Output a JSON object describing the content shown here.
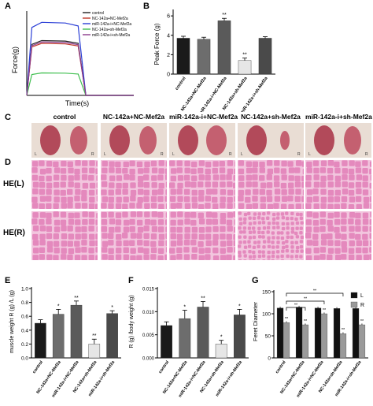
{
  "panel_labels": {
    "A": "A",
    "B": "B",
    "C": "C",
    "D": "D",
    "E": "E",
    "F": "F",
    "G": "G"
  },
  "groups": [
    "control",
    "NC-142a+NC-Mef2a",
    "miR-142a-i+NC-Mef2a",
    "NC-142a+sh-Mef2a",
    "miR-142a-i+sh-Mef2a"
  ],
  "colors": {
    "control": "#222222",
    "nc_nc": "#c0392b",
    "mir_nc": "#2b3fd6",
    "nc_sh": "#3fbf4f",
    "mir_sh": "#8b3a8b",
    "bar_control": "#1a1a1a",
    "bar_gray": "#6d6d6d",
    "bar_light": "#c8c8c8",
    "bar_white": "#e6e6e6",
    "bar_L": "#111111",
    "bar_R": "#9a9a9a",
    "he_pink": "#f2c6de",
    "he_fiber": "#e489bd"
  },
  "rows": {
    "C": "C",
    "he_L": "HE(L)",
    "he_R": "HE(R)"
  },
  "photo_marks": {
    "left": "L",
    "right": "R"
  },
  "chart_data": [
    {
      "panel": "A",
      "type": "line",
      "xlabel": "Time(s)",
      "ylabel": "Force(g)",
      "x": [
        0,
        0.5,
        1,
        1.5,
        2,
        2.5
      ],
      "series": [
        {
          "name": "control",
          "values": [
            0,
            3.9,
            3.9,
            0,
            0,
            0
          ]
        },
        {
          "name": "NC-142a+NC-Mef2a",
          "values": [
            0,
            3.7,
            3.7,
            0,
            0,
            0
          ]
        },
        {
          "name": "miR-142a-i+NC-Mef2a",
          "values": [
            0,
            5.2,
            5.2,
            0,
            0,
            0
          ]
        },
        {
          "name": "NC-142a+sh-Mef2a",
          "values": [
            0,
            1.6,
            1.6,
            0,
            0,
            0
          ]
        },
        {
          "name": "miR-142a-i+sh-Mef2a",
          "values": [
            0,
            3.8,
            3.8,
            0,
            0,
            0
          ]
        }
      ],
      "legend": "top-right"
    },
    {
      "panel": "B",
      "type": "bar",
      "ylabel": "Peak Force (g)",
      "yticks": [
        "0",
        "2",
        "4",
        "6"
      ],
      "ylim": [
        0,
        6.5
      ],
      "categories": [
        "control",
        "NC-142a+NC-Mef2a",
        "miR-142a-i+NC-Mef2a",
        "NC-142a+sh-Mef2a",
        "miR-142a-i+sh-Mef2a"
      ],
      "values": [
        3.7,
        3.6,
        5.5,
        1.4,
        3.7
      ],
      "errors": [
        0.2,
        0.2,
        0.25,
        0.25,
        0.15
      ],
      "significance": [
        "",
        "",
        "**",
        "**",
        ""
      ]
    },
    {
      "panel": "E",
      "type": "bar",
      "ylabel": "muscle weight R (g) /L (g)",
      "yticks": [
        "0.0",
        "0.2",
        "0.4",
        "0.6",
        "0.8",
        "1.0"
      ],
      "ylim": [
        0,
        1.0
      ],
      "categories": [
        "control",
        "NC-142a+NC-Mef2a",
        "miR-142a-i+NC-Mef2a",
        "NC-142a+sh-Mef2a",
        "miR-142a-i+sh-Mef2a"
      ],
      "values": [
        0.5,
        0.63,
        0.76,
        0.2,
        0.64
      ],
      "errors": [
        0.05,
        0.07,
        0.06,
        0.07,
        0.04
      ],
      "significance": [
        "",
        "*",
        "**",
        "**",
        "*"
      ]
    },
    {
      "panel": "F",
      "type": "bar",
      "ylabel": "R (g) /body weight (g)",
      "yticks": [
        "0.000",
        "0.005",
        "0.010",
        "0.015"
      ],
      "ylim": [
        0,
        0.015
      ],
      "categories": [
        "control",
        "NC-142a+NC-Mef2a",
        "miR-142a-i+NC-Mef2a",
        "NC-142a+sh-Mef2a",
        "miR-142a-i+sh-Mef2a"
      ],
      "values": [
        0.007,
        0.0085,
        0.011,
        0.003,
        0.0093
      ],
      "errors": [
        0.0008,
        0.0018,
        0.0012,
        0.0008,
        0.0012
      ],
      "significance": [
        "",
        "*",
        "**",
        "*",
        "*"
      ]
    },
    {
      "panel": "G",
      "type": "bar",
      "ylabel": "Feret Diameter",
      "yticks": [
        "0",
        "50",
        "100",
        "150"
      ],
      "ylim": [
        0,
        150
      ],
      "categories": [
        "control",
        "NC-142a+NC-Mef2a",
        "miR-142a-i+NC-Mef2a",
        "NC-142a+sh-Mef2a",
        "miR-142a-i+sh-Mef2a"
      ],
      "series": [
        {
          "name": "L",
          "values": [
            113,
            115,
            113,
            112,
            112
          ],
          "errors": [
            3,
            3,
            3,
            3,
            3
          ]
        },
        {
          "name": "R",
          "values": [
            80,
            75,
            100,
            55,
            75
          ],
          "errors": [
            3,
            3,
            3,
            3,
            3
          ]
        }
      ],
      "significance_R": [
        "**",
        "**",
        "**",
        "**",
        "**"
      ],
      "brackets": [
        "**",
        "**",
        "**"
      ],
      "legend": "top-right"
    }
  ]
}
